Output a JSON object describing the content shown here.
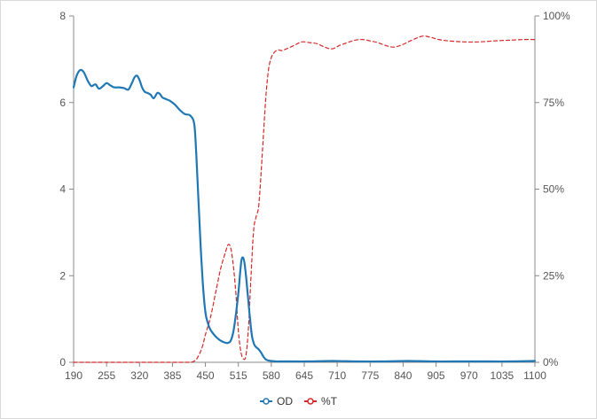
{
  "chart_data": {
    "type": "line",
    "x_ticks": [
      190,
      255,
      320,
      385,
      450,
      515,
      580,
      645,
      710,
      775,
      840,
      905,
      970,
      1035,
      1100
    ],
    "xlim": [
      190,
      1100
    ],
    "ylim_left": [
      0,
      8
    ],
    "y_ticks_left": [
      "0",
      "2",
      "4",
      "6",
      "8"
    ],
    "ylim_right": [
      0,
      100
    ],
    "y_ticks_right": [
      "0%",
      "25%",
      "50%",
      "75%",
      "100%"
    ],
    "grid": false,
    "legend_position": "bottom-center",
    "series": [
      {
        "name": "OD",
        "axis": "left",
        "color": "#1f77b4",
        "style": "solid",
        "x": [
          190,
          196,
          203,
          210,
          218,
          225,
          233,
          240,
          248,
          255,
          262,
          270,
          280,
          290,
          298,
          305,
          310,
          315,
          320,
          325,
          330,
          336,
          342,
          348,
          355,
          360,
          365,
          372,
          380,
          390,
          400,
          410,
          420,
          428,
          432,
          436,
          440,
          445,
          450,
          455,
          460,
          470,
          480,
          490,
          495,
          500,
          505,
          510,
          515,
          518,
          521,
          524,
          527,
          530,
          534,
          538,
          542,
          546,
          550,
          555,
          560,
          565,
          570,
          575,
          580,
          590,
          600,
          620,
          650,
          700,
          750,
          800,
          850,
          900,
          950,
          1000,
          1050,
          1100
        ],
        "y": [
          6.35,
          6.62,
          6.75,
          6.7,
          6.5,
          6.38,
          6.42,
          6.32,
          6.38,
          6.45,
          6.4,
          6.35,
          6.35,
          6.33,
          6.3,
          6.45,
          6.58,
          6.62,
          6.52,
          6.35,
          6.25,
          6.22,
          6.18,
          6.1,
          6.22,
          6.2,
          6.12,
          6.08,
          6.04,
          5.95,
          5.82,
          5.73,
          5.7,
          5.5,
          4.8,
          3.8,
          2.8,
          1.8,
          1.15,
          0.9,
          0.75,
          0.6,
          0.5,
          0.45,
          0.45,
          0.5,
          0.7,
          1.1,
          1.6,
          2.0,
          2.35,
          2.42,
          2.3,
          2.0,
          1.5,
          1.0,
          0.6,
          0.42,
          0.35,
          0.3,
          0.22,
          0.12,
          0.06,
          0.04,
          0.03,
          0.02,
          0.02,
          0.02,
          0.02,
          0.03,
          0.02,
          0.02,
          0.03,
          0.02,
          0.02,
          0.02,
          0.02,
          0.03
        ]
      },
      {
        "name": "%T",
        "axis": "right",
        "color": "#d62728",
        "style": "dashed",
        "x": [
          190,
          300,
          400,
          420,
          430,
          435,
          440,
          445,
          450,
          460,
          470,
          480,
          490,
          495,
          500,
          505,
          510,
          515,
          520,
          525,
          530,
          535,
          540,
          545,
          550,
          555,
          560,
          565,
          570,
          575,
          580,
          585,
          590,
          595,
          600,
          610,
          625,
          640,
          655,
          670,
          685,
          700,
          715,
          730,
          745,
          760,
          775,
          790,
          805,
          820,
          835,
          850,
          865,
          880,
          895,
          910,
          930,
          960,
          990,
          1020,
          1050,
          1080,
          1100
        ],
        "y": [
          0,
          0,
          0,
          0,
          0.5,
          1.5,
          3,
          5,
          8,
          13,
          20,
          27,
          32,
          34,
          33,
          28,
          20,
          9,
          3,
          1,
          2,
          10,
          25,
          38,
          42,
          45,
          55,
          67,
          78,
          85,
          88,
          89.3,
          90,
          90.2,
          90,
          90.5,
          91.5,
          92.5,
          92.3,
          92,
          91,
          90.5,
          91.5,
          92.3,
          93,
          93.2,
          92.8,
          92.3,
          91.5,
          91,
          91.5,
          92.5,
          93.5,
          94.2,
          93.8,
          93.2,
          92.8,
          92.5,
          92.5,
          92.8,
          93,
          93.2,
          93.2
        ]
      }
    ]
  },
  "legend": {
    "od_label": "OD",
    "t_label": "%T"
  }
}
